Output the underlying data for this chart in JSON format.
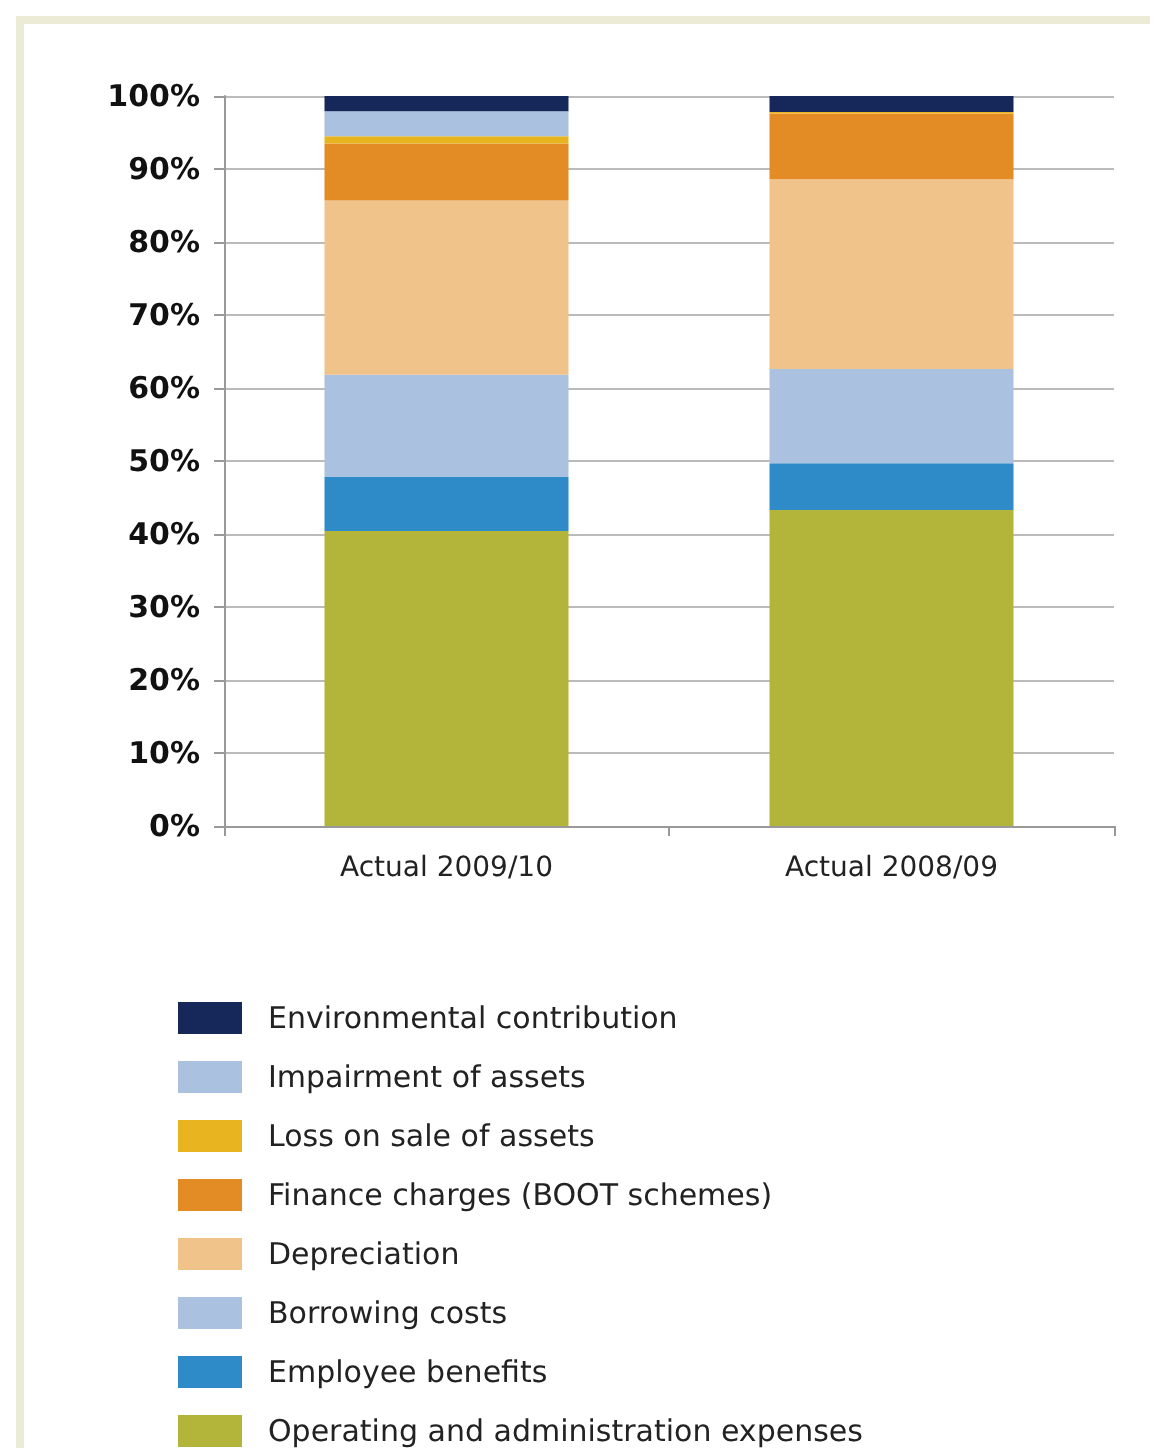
{
  "chart_data": {
    "type": "bar",
    "stacked": true,
    "categories": [
      "Actual 2009/10",
      "Actual 2008/09"
    ],
    "series": [
      {
        "name": "Operating and administration expenses",
        "color": "#b3b53a",
        "values": [
          40.4,
          43.3
        ]
      },
      {
        "name": "Employee benefits",
        "color": "#2e8bc8",
        "values": [
          7.4,
          6.4
        ]
      },
      {
        "name": "Borrowing costs",
        "color": "#aac1e0",
        "values": [
          14.0,
          12.9
        ]
      },
      {
        "name": "Depreciation",
        "color": "#f0c38a",
        "values": [
          23.9,
          26.0
        ]
      },
      {
        "name": "Finance charges (BOOT schemes)",
        "color": "#e38b24",
        "values": [
          7.8,
          9.0
        ]
      },
      {
        "name": "Loss on sale of assets",
        "color": "#e8b520",
        "values": [
          1.0,
          0.2
        ]
      },
      {
        "name": "Impairment of assets",
        "color": "#aac1e0",
        "values": [
          3.4,
          0
        ]
      },
      {
        "name": "Environmental contribution",
        "color": "#16275a",
        "values": [
          2.1,
          2.2
        ]
      }
    ],
    "ylim": [
      0,
      100
    ],
    "yticks": [
      {
        "value": 0,
        "label": "0%"
      },
      {
        "value": 10,
        "label": "10%"
      },
      {
        "value": 20,
        "label": "20%"
      },
      {
        "value": 30,
        "label": "30%"
      },
      {
        "value": 40,
        "label": "40%"
      },
      {
        "value": 50,
        "label": "50%"
      },
      {
        "value": 60,
        "label": "60%"
      },
      {
        "value": 70,
        "label": "70%"
      },
      {
        "value": 80,
        "label": "80%"
      },
      {
        "value": 90,
        "label": "90%"
      },
      {
        "value": 100,
        "label": "100%"
      }
    ],
    "grid": "y",
    "legend": "bottom"
  }
}
